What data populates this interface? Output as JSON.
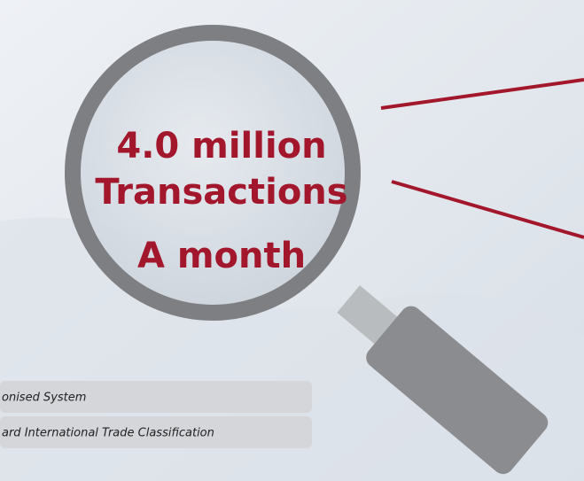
{
  "magnifier": {
    "lines": [
      "4.0 million",
      "Transactions",
      "A month"
    ]
  },
  "notes": [
    "onised System",
    "ard International Trade Classification"
  ]
}
